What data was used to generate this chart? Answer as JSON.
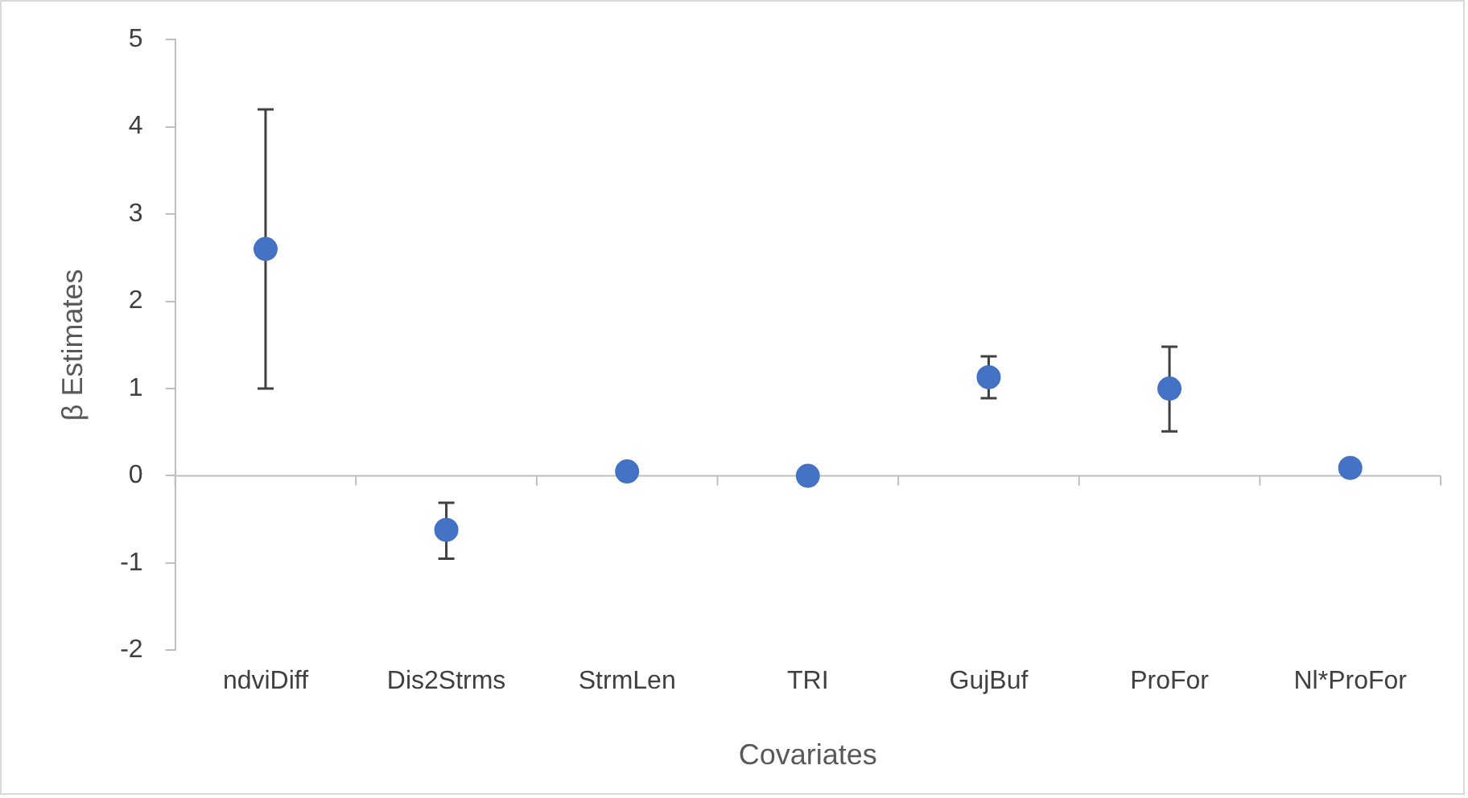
{
  "chart_data": {
    "type": "scatter",
    "xlabel": "Covariates",
    "ylabel": "β Estimates",
    "categories": [
      "ndviDiff",
      "Dis2Strms",
      "StrmLen",
      "TRI",
      "GujBuf",
      "ProFor",
      "Nl*ProFor"
    ],
    "values": [
      2.6,
      -0.62,
      0.05,
      0,
      1.13,
      1.0,
      0.09
    ],
    "errors": [
      [
        1.0,
        4.2
      ],
      [
        -0.95,
        -0.31
      ],
      null,
      null,
      [
        0.89,
        1.37
      ],
      [
        0.51,
        1.48
      ],
      null
    ],
    "color": "#4472c4",
    "marker": "circle",
    "ylim": [
      -2,
      5
    ],
    "yticks": [
      -2,
      -1,
      0,
      1,
      2,
      3,
      4,
      5
    ],
    "legend": false
  }
}
